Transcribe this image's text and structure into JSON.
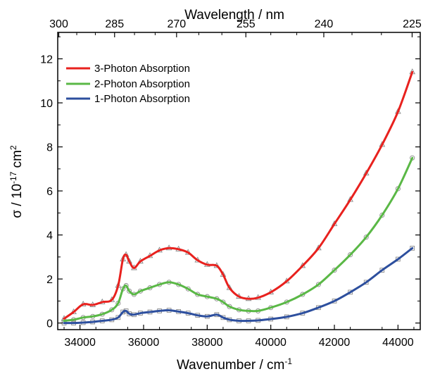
{
  "chart_data": {
    "type": "line",
    "title": "",
    "xlabel": "Wavenumber / cm",
    "xlabel_sup": "-1",
    "ylabel_parts": [
      "σ / 10",
      "-17",
      " cm",
      "2"
    ],
    "top_axis_label": "Wavelength / nm",
    "xlim": [
      33300,
      44700
    ],
    "ylim": [
      -0.3,
      13.2
    ],
    "x_ticks": [
      34000,
      36000,
      38000,
      40000,
      42000,
      44000
    ],
    "x_tick_labels": [
      "34000",
      "36000",
      "38000",
      "40000",
      "42000",
      "44000"
    ],
    "y_ticks": [
      0,
      2,
      4,
      6,
      8,
      10,
      12
    ],
    "y_tick_labels": [
      "0",
      "2",
      "4",
      "6",
      "8",
      "10",
      "12"
    ],
    "top_ticks_nm": [
      300,
      285,
      270,
      255,
      240,
      225
    ],
    "top_tick_labels": [
      "300",
      "285",
      "270",
      "255",
      "240",
      "225"
    ],
    "grid": false,
    "legend_position": "top-left",
    "series": [
      {
        "name": "3-Photon Absorption",
        "color": "#e8211e",
        "marker": "triangle",
        "x": [
          33500,
          33800,
          34100,
          34400,
          34700,
          35000,
          35200,
          35350,
          35450,
          35550,
          35700,
          35900,
          36200,
          36500,
          36800,
          37100,
          37400,
          37700,
          38000,
          38300,
          38500,
          38700,
          39000,
          39300,
          39600,
          40000,
          40500,
          41000,
          41500,
          42000,
          42500,
          43000,
          43500,
          44000,
          44450
        ],
        "values": [
          0.2,
          0.5,
          0.85,
          0.82,
          0.95,
          1.05,
          1.7,
          2.9,
          3.1,
          2.8,
          2.5,
          2.8,
          3.05,
          3.3,
          3.4,
          3.35,
          3.2,
          2.85,
          2.65,
          2.6,
          2.2,
          1.6,
          1.2,
          1.1,
          1.15,
          1.4,
          1.9,
          2.6,
          3.4,
          4.5,
          5.6,
          6.8,
          8.1,
          9.6,
          11.4
        ]
      },
      {
        "name": "2-Photon Absorption",
        "color": "#5ab846",
        "marker": "circle",
        "x": [
          33500,
          33800,
          34100,
          34400,
          34700,
          35000,
          35200,
          35350,
          35450,
          35550,
          35700,
          35900,
          36200,
          36500,
          36800,
          37100,
          37400,
          37700,
          38000,
          38300,
          38500,
          38700,
          39000,
          39300,
          39600,
          40000,
          40500,
          41000,
          41500,
          42000,
          42500,
          43000,
          43500,
          44000,
          44450
        ],
        "values": [
          0.1,
          0.15,
          0.25,
          0.3,
          0.4,
          0.6,
          0.9,
          1.55,
          1.7,
          1.45,
          1.3,
          1.45,
          1.6,
          1.75,
          1.85,
          1.75,
          1.55,
          1.3,
          1.2,
          1.1,
          0.95,
          0.75,
          0.6,
          0.55,
          0.55,
          0.7,
          0.95,
          1.3,
          1.75,
          2.4,
          3.1,
          3.9,
          4.9,
          6.1,
          7.5
        ]
      },
      {
        "name": "1-Photon Absorption",
        "color": "#2d4f9e",
        "marker": "square",
        "x": [
          33500,
          33800,
          34100,
          34400,
          34700,
          35000,
          35200,
          35350,
          35450,
          35550,
          35700,
          35900,
          36200,
          36500,
          36800,
          37100,
          37400,
          37700,
          38000,
          38300,
          38500,
          38700,
          39000,
          39300,
          39600,
          40000,
          40500,
          41000,
          41500,
          42000,
          42500,
          43000,
          43500,
          44000,
          44450
        ],
        "values": [
          0.0,
          0.0,
          0.02,
          0.05,
          0.1,
          0.15,
          0.25,
          0.5,
          0.55,
          0.42,
          0.38,
          0.45,
          0.5,
          0.55,
          0.58,
          0.52,
          0.45,
          0.35,
          0.3,
          0.38,
          0.25,
          0.15,
          0.1,
          0.1,
          0.12,
          0.18,
          0.28,
          0.45,
          0.7,
          1.0,
          1.4,
          1.85,
          2.4,
          2.9,
          3.4
        ]
      }
    ]
  }
}
